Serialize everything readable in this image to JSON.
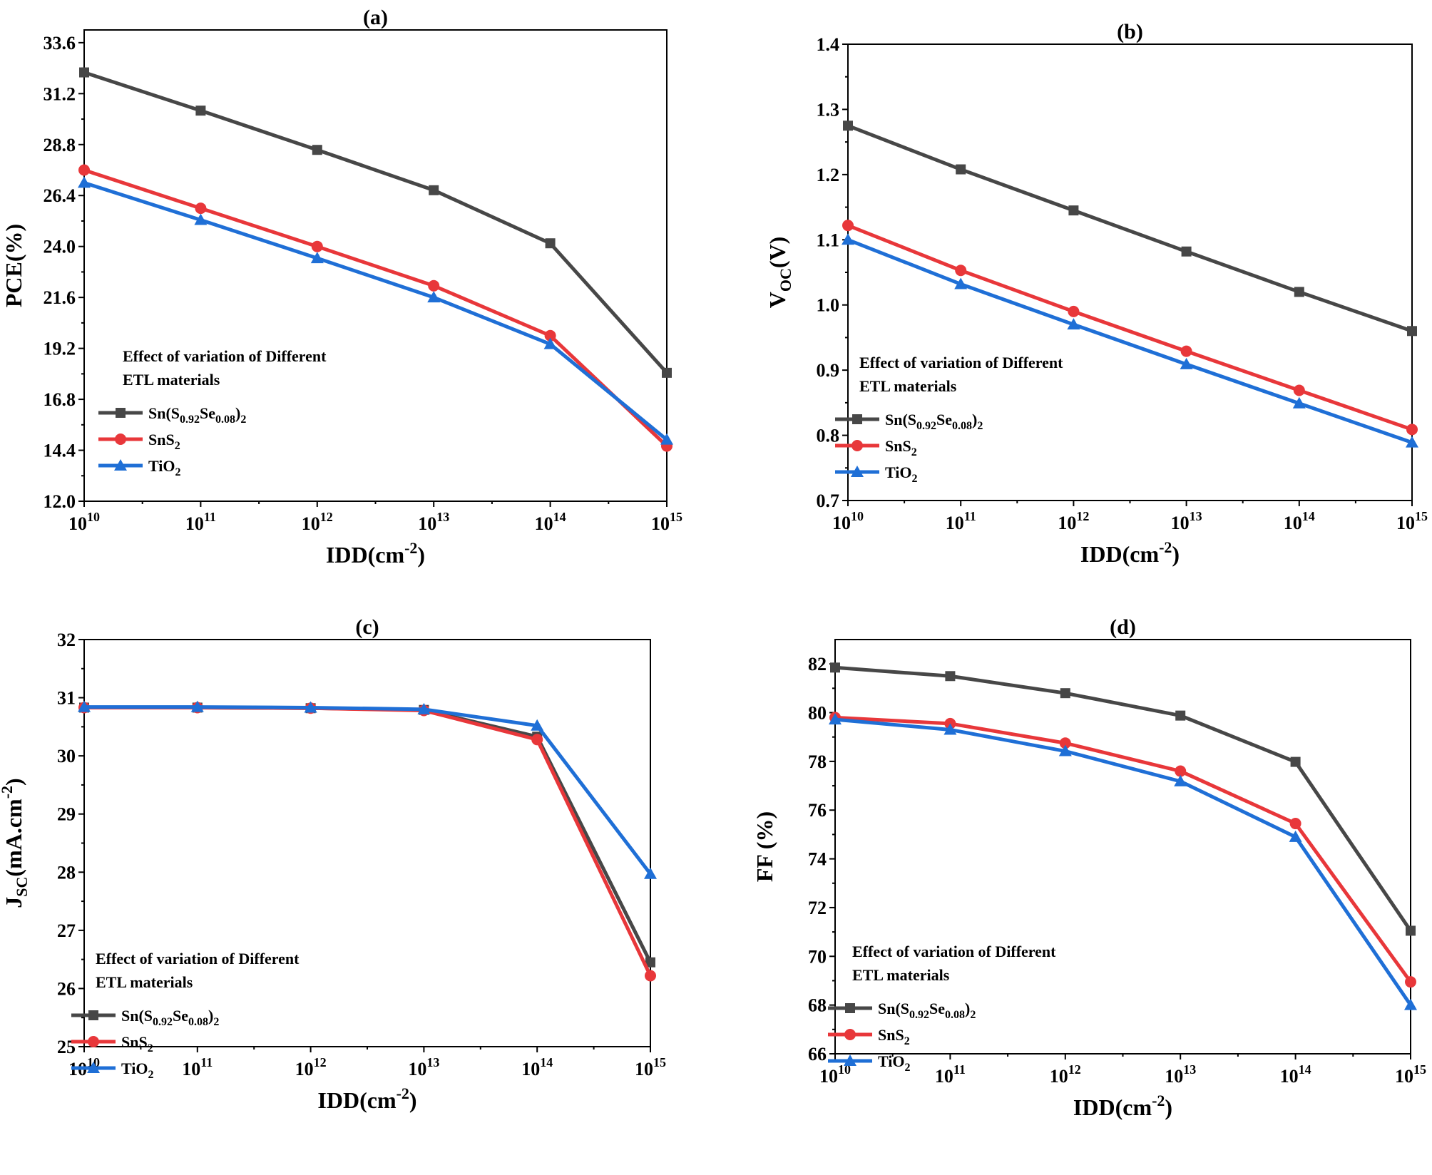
{
  "chart_data": [
    {
      "type": "line",
      "title": "(a)",
      "xlabel": "IDD(cm",
      "xlabel_sup": "-2",
      "xlabel_end": ")",
      "ylabel": "PCE(%)",
      "x": [
        10,
        11,
        12,
        13,
        14,
        15
      ],
      "x_tick_base": "10",
      "x_tick_exponents": [
        "10",
        "11",
        "12",
        "13",
        "14",
        "15"
      ],
      "xscale": "log",
      "xlim": [
        10,
        15
      ],
      "ylim": [
        12.0,
        34.2
      ],
      "y_ticks": [
        12.0,
        14.4,
        16.8,
        19.2,
        21.6,
        24.0,
        26.4,
        28.8,
        31.2,
        33.6
      ],
      "y_tick_labels": [
        "12.0",
        "14.4",
        "16.8",
        "19.2",
        "21.6",
        "24.0",
        "26.4",
        "28.8",
        "31.2",
        "33.6"
      ],
      "legend_note_lines": [
        "Effect of variation of Different",
        "ETL materials"
      ],
      "legend_position": "lower-left",
      "series": [
        {
          "name_parts": [
            {
              "t": "Sn(S"
            },
            {
              "t": "0.92",
              "sub": true
            },
            {
              "t": "Se"
            },
            {
              "t": "0.08",
              "sub": true
            },
            {
              "t": ")"
            },
            {
              "t": "2",
              "sub": true
            }
          ],
          "color": "#474747",
          "marker": "square",
          "values": [
            32.2,
            30.4,
            28.55,
            26.65,
            24.15,
            18.05
          ]
        },
        {
          "name_parts": [
            {
              "t": "SnS"
            },
            {
              "t": "2",
              "sub": true
            }
          ],
          "color": "#e8373a",
          "marker": "circle",
          "values": [
            27.6,
            25.8,
            24.0,
            22.15,
            19.8,
            14.6
          ]
        },
        {
          "name_parts": [
            {
              "t": "TiO"
            },
            {
              "t": "2",
              "sub": true
            }
          ],
          "color": "#1f6fd6",
          "marker": "triangle",
          "values": [
            27.0,
            25.25,
            23.45,
            21.6,
            19.4,
            14.9
          ]
        }
      ]
    },
    {
      "type": "line",
      "title": "(b)",
      "xlabel": "IDD(cm",
      "xlabel_sup": "-2",
      "xlabel_end": ")",
      "ylabel": "V",
      "ylabel_sub": "OC",
      "ylabel_end": "(V)",
      "x": [
        10,
        11,
        12,
        13,
        14,
        15
      ],
      "x_tick_base": "10",
      "x_tick_exponents": [
        "10",
        "11",
        "12",
        "13",
        "14",
        "15"
      ],
      "xscale": "log",
      "xlim": [
        10,
        15
      ],
      "ylim": [
        0.7,
        1.4
      ],
      "y_ticks": [
        0.7,
        0.8,
        0.9,
        1.0,
        1.1,
        1.2,
        1.3,
        1.4
      ],
      "y_tick_labels": [
        "0.7",
        "0.8",
        "0.9",
        "1.0",
        "1.1",
        "1.2",
        "1.3",
        "1.4"
      ],
      "legend_note_lines": [
        "Effect of variation of Different",
        "ETL materials"
      ],
      "legend_position": "lower-left",
      "series": [
        {
          "name_parts": [
            {
              "t": "Sn(S"
            },
            {
              "t": "0.92",
              "sub": true
            },
            {
              "t": "Se"
            },
            {
              "t": "0.08",
              "sub": true
            },
            {
              "t": ")"
            },
            {
              "t": "2",
              "sub": true
            }
          ],
          "color": "#474747",
          "marker": "square",
          "values": [
            1.275,
            1.208,
            1.145,
            1.082,
            1.02,
            0.96
          ]
        },
        {
          "name_parts": [
            {
              "t": "SnS"
            },
            {
              "t": "2",
              "sub": true
            }
          ],
          "color": "#e8373a",
          "marker": "circle",
          "values": [
            1.122,
            1.053,
            0.99,
            0.929,
            0.869,
            0.809
          ]
        },
        {
          "name_parts": [
            {
              "t": "TiO"
            },
            {
              "t": "2",
              "sub": true
            }
          ],
          "color": "#1f6fd6",
          "marker": "triangle",
          "values": [
            1.1,
            1.032,
            0.97,
            0.909,
            0.849,
            0.789
          ]
        }
      ]
    },
    {
      "type": "line",
      "title": "(c)",
      "xlabel": "IDD(cm",
      "xlabel_sup": "-2",
      "xlabel_end": ")",
      "ylabel": "J",
      "ylabel_sub": "SC",
      "ylabel_end": "(mA.cm",
      "ylabel_sup": "-2",
      "ylabel_end2": ")",
      "x": [
        10,
        11,
        12,
        13,
        14,
        15
      ],
      "x_tick_base": "10",
      "x_tick_exponents": [
        "10",
        "11",
        "12",
        "13",
        "14",
        "15"
      ],
      "xscale": "log",
      "xlim": [
        10,
        15
      ],
      "ylim": [
        25,
        32
      ],
      "y_ticks": [
        25,
        26,
        27,
        28,
        29,
        30,
        31,
        32
      ],
      "y_tick_labels": [
        "25",
        "26",
        "27",
        "28",
        "29",
        "30",
        "31",
        "32"
      ],
      "legend_note_lines": [
        "Effect of variation of Different",
        "ETL materials"
      ],
      "legend_position": "lower-left",
      "series": [
        {
          "name_parts": [
            {
              "t": "Sn(S"
            },
            {
              "t": "0.92",
              "sub": true
            },
            {
              "t": "Se"
            },
            {
              "t": "0.08",
              "sub": true
            },
            {
              "t": ")"
            },
            {
              "t": "2",
              "sub": true
            }
          ],
          "color": "#474747",
          "marker": "square",
          "values": [
            30.83,
            30.83,
            30.82,
            30.79,
            30.33,
            26.45
          ]
        },
        {
          "name_parts": [
            {
              "t": "SnS"
            },
            {
              "t": "2",
              "sub": true
            }
          ],
          "color": "#e8373a",
          "marker": "circle",
          "values": [
            30.83,
            30.83,
            30.82,
            30.78,
            30.28,
            26.22
          ]
        },
        {
          "name_parts": [
            {
              "t": "TiO"
            },
            {
              "t": "2",
              "sub": true
            }
          ],
          "color": "#1f6fd6",
          "marker": "triangle",
          "values": [
            30.84,
            30.84,
            30.83,
            30.8,
            30.52,
            27.97
          ]
        }
      ]
    },
    {
      "type": "line",
      "title": "(d)",
      "xlabel": "IDD(cm",
      "xlabel_sup": "-2",
      "xlabel_end": ")",
      "ylabel": "FF (%)",
      "x": [
        10,
        11,
        12,
        13,
        14,
        15
      ],
      "x_tick_base": "10",
      "x_tick_exponents": [
        "10",
        "11",
        "12",
        "13",
        "14",
        "15"
      ],
      "xscale": "log",
      "xlim": [
        10,
        15
      ],
      "ylim": [
        66,
        83
      ],
      "y_ticks": [
        66,
        68,
        70,
        72,
        74,
        76,
        78,
        80,
        82
      ],
      "y_tick_labels": [
        "66",
        "68",
        "70",
        "72",
        "74",
        "76",
        "78",
        "80",
        "82"
      ],
      "legend_note_lines": [
        "Effect of variation of Different",
        "ETL materials"
      ],
      "legend_position": "lower-left",
      "series": [
        {
          "name_parts": [
            {
              "t": "Sn(S"
            },
            {
              "t": "0.92",
              "sub": true
            },
            {
              "t": "Se"
            },
            {
              "t": "0.08",
              "sub": true
            },
            {
              "t": ")"
            },
            {
              "t": "2",
              "sub": true
            }
          ],
          "color": "#474747",
          "marker": "square",
          "values": [
            81.85,
            81.5,
            80.8,
            79.88,
            77.98,
            71.05
          ]
        },
        {
          "name_parts": [
            {
              "t": "SnS"
            },
            {
              "t": "2",
              "sub": true
            }
          ],
          "color": "#e8373a",
          "marker": "circle",
          "values": [
            79.8,
            79.55,
            78.75,
            77.6,
            75.45,
            68.95
          ]
        },
        {
          "name_parts": [
            {
              "t": "TiO"
            },
            {
              "t": "2",
              "sub": true
            }
          ],
          "color": "#1f6fd6",
          "marker": "triangle",
          "values": [
            79.72,
            79.3,
            78.42,
            77.18,
            74.9,
            68.0
          ]
        }
      ]
    }
  ]
}
